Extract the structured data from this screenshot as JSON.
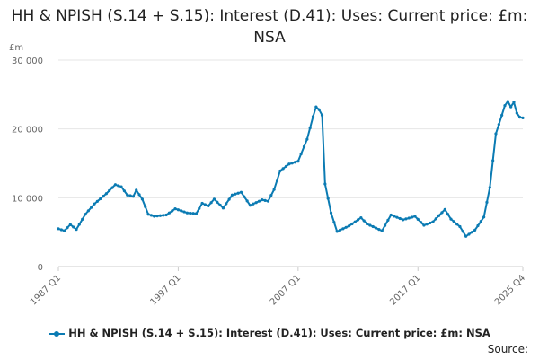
{
  "title": "HH & NPISH (S.14 + S.15): Interest (D.41): Uses: Current price: £m: NSA",
  "source_label": "Source:",
  "colors": {
    "series": "#0b7bb3",
    "grid": "#e6e6e6",
    "axis": "#cccccc"
  },
  "chart_data": {
    "type": "line",
    "title": "HH & NPISH (S.14 + S.15): Interest (D.41): Uses: Current price: £m: NSA",
    "ylabel": "£m",
    "xlabel": "",
    "ylim": [
      0,
      30000
    ],
    "yticks": [
      0,
      10000,
      20000,
      30000
    ],
    "ytick_labels": [
      "0",
      "10 000",
      "20 000",
      "30 000"
    ],
    "x_start": "1987 Q1",
    "x_end": "2025 Q4",
    "xtick_labels": [
      "1987 Q1",
      "1997 Q1",
      "2007 Q1",
      "2017 Q1",
      "2025 Q4"
    ],
    "grid": true,
    "legend": "bottom",
    "markers": true,
    "series": [
      {
        "name": "HH & NPISH (S.14 + S.15): Interest (D.41): Uses: Current price: £m: NSA",
        "keyframes": [
          [
            "1987 Q1",
            5500
          ],
          [
            "1987 Q3",
            5200
          ],
          [
            "1988 Q1",
            6100
          ],
          [
            "1988 Q3",
            5400
          ],
          [
            "1989 Q2",
            7600
          ],
          [
            "1990 Q1",
            9100
          ],
          [
            "1991 Q1",
            10600
          ],
          [
            "1991 Q4",
            11900
          ],
          [
            "1992 Q2",
            11600
          ],
          [
            "1992 Q4",
            10400
          ],
          [
            "1993 Q2",
            10200
          ],
          [
            "1993 Q3",
            11100
          ],
          [
            "1994 Q1",
            9800
          ],
          [
            "1994 Q3",
            7600
          ],
          [
            "1995 Q1",
            7300
          ],
          [
            "1996 Q1",
            7500
          ],
          [
            "1996 Q4",
            8400
          ],
          [
            "1997 Q4",
            7800
          ],
          [
            "1998 Q3",
            7700
          ],
          [
            "1999 Q1",
            9200
          ],
          [
            "1999 Q3",
            8800
          ],
          [
            "2000 Q1",
            9800
          ],
          [
            "2000 Q4",
            8500
          ],
          [
            "2001 Q3",
            10400
          ],
          [
            "2002 Q2",
            10800
          ],
          [
            "2003 Q1",
            8900
          ],
          [
            "2004 Q1",
            9700
          ],
          [
            "2004 Q3",
            9500
          ],
          [
            "2005 Q1",
            11200
          ],
          [
            "2005 Q3",
            13900
          ],
          [
            "2006 Q2",
            14900
          ],
          [
            "2007 Q1",
            15300
          ],
          [
            "2007 Q4",
            18500
          ],
          [
            "2008 Q2",
            21800
          ],
          [
            "2008 Q3",
            23200
          ],
          [
            "2008 Q4",
            22800
          ],
          [
            "2009 Q1",
            22000
          ],
          [
            "2009 Q2",
            12000
          ],
          [
            "2009 Q4",
            7800
          ],
          [
            "2010 Q2",
            5100
          ],
          [
            "2011 Q2",
            5900
          ],
          [
            "2012 Q2",
            7100
          ],
          [
            "2012 Q4",
            6200
          ],
          [
            "2014 Q1",
            5200
          ],
          [
            "2014 Q4",
            7500
          ],
          [
            "2015 Q4",
            6800
          ],
          [
            "2016 Q4",
            7300
          ],
          [
            "2017 Q3",
            6000
          ],
          [
            "2018 Q2",
            6500
          ],
          [
            "2019 Q2",
            8300
          ],
          [
            "2019 Q4",
            6900
          ],
          [
            "2020 Q3",
            5800
          ],
          [
            "2021 Q1",
            4400
          ],
          [
            "2021 Q4",
            5300
          ],
          [
            "2022 Q3",
            7200
          ],
          [
            "2023 Q1",
            11500
          ],
          [
            "2023 Q3",
            19300
          ],
          [
            "2024 Q1",
            22000
          ],
          [
            "2024 Q2",
            23400
          ],
          [
            "2024 Q3",
            24000
          ],
          [
            "2024 Q4",
            23200
          ],
          [
            "2025 Q1",
            23900
          ],
          [
            "2025 Q2",
            22300
          ],
          [
            "2025 Q3",
            21700
          ],
          [
            "2025 Q4",
            21600
          ]
        ]
      }
    ]
  }
}
